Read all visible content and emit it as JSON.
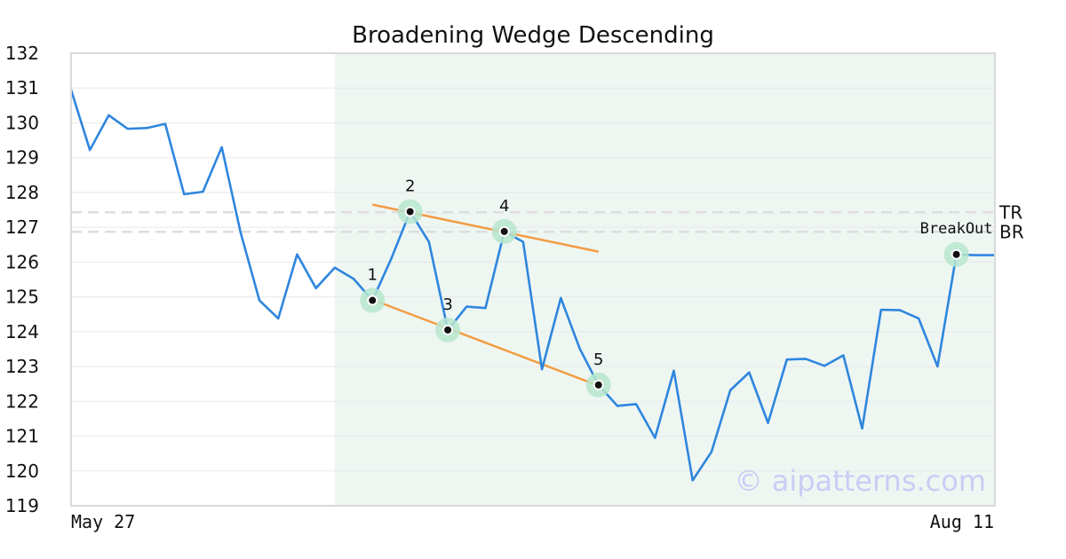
{
  "chart_data": {
    "type": "line",
    "title": "Broadening Wedge Descending",
    "ylim": [
      119,
      132
    ],
    "yticks": [
      119,
      120,
      121,
      122,
      123,
      124,
      125,
      126,
      127,
      128,
      129,
      130,
      131,
      132
    ],
    "x_labels": {
      "start": "May 27",
      "end": "Aug 11"
    },
    "series": [
      {
        "values": [
          130.95,
          129.22,
          130.22,
          129.83,
          129.85,
          129.97,
          127.95,
          128.02,
          129.3,
          126.85,
          124.9,
          124.38,
          126.22,
          125.25,
          125.84,
          125.52,
          124.9,
          126.1,
          127.45,
          126.58,
          124.05,
          124.72,
          124.68,
          126.88,
          126.58,
          122.92,
          124.97,
          123.52,
          122.47,
          121.87,
          121.92,
          120.95,
          122.88,
          119.73,
          120.55,
          122.32,
          122.83,
          121.38,
          123.2,
          123.22,
          123.02,
          123.32,
          121.22,
          124.63,
          124.62,
          124.38,
          123.0,
          126.22,
          126.2,
          126.2
        ]
      }
    ],
    "highlight_region": {
      "from_index": 14,
      "to_index": 49
    },
    "reference_lines": [
      {
        "label": "TR",
        "value": 127.43
      },
      {
        "label": "BR",
        "value": 126.87
      }
    ],
    "trend_lines": [
      {
        "from": {
          "index": 16,
          "value": 127.65
        },
        "to": {
          "index": 28,
          "value": 126.3
        }
      },
      {
        "from": {
          "index": 16,
          "value": 124.92
        },
        "to": {
          "index": 28,
          "value": 122.45
        }
      }
    ],
    "points": [
      {
        "label": "1",
        "index": 16,
        "value": 124.9
      },
      {
        "label": "2",
        "index": 18,
        "value": 127.45
      },
      {
        "label": "3",
        "index": 20,
        "value": 124.05
      },
      {
        "label": "4",
        "index": 23,
        "value": 126.88
      },
      {
        "label": "5",
        "index": 28,
        "value": 122.47
      },
      {
        "label": "BreakOut",
        "index": 47,
        "value": 126.22
      }
    ],
    "colors": {
      "line": "#2e86de",
      "trend": "#f39c43",
      "highlight": "#eef6f2",
      "marker_halo": "#b7e6cf",
      "reference": "#dddddd",
      "grid": "#e8e8e8",
      "watermark": "#c9cdf5"
    }
  },
  "watermark": "© aipatterns.com"
}
